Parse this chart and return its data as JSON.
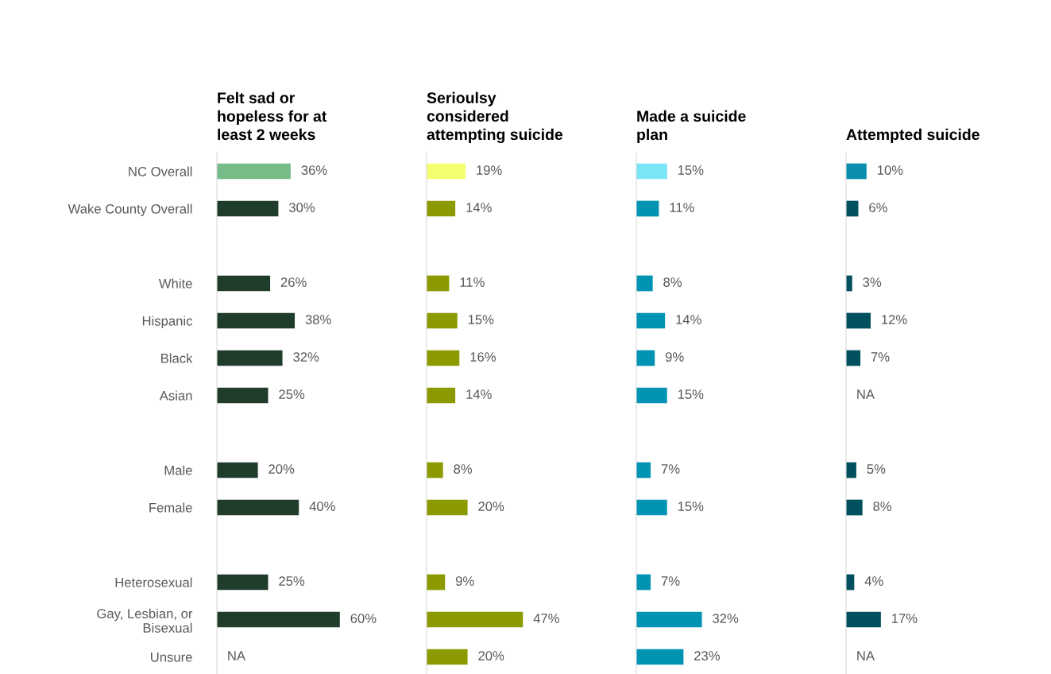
{
  "chart_data": [
    {
      "type": "bar",
      "orientation": "horizontal",
      "title": "Felt sad or\nhopeless for at\nleast 2 weeks",
      "tick_labels": "y",
      "categories": [
        "NC Overall",
        "Wake County Overall",
        null,
        "White",
        "Hispanic",
        "Black",
        "Asian",
        null,
        "Male",
        "Female",
        null,
        "Heterosexual",
        "Gay, Lesbian, or\nBisexual",
        "Unsure"
      ],
      "values": [
        36,
        30,
        null,
        26,
        38,
        32,
        25,
        null,
        20,
        40,
        null,
        25,
        60,
        null
      ],
      "value_labels": [
        "36%",
        "30%",
        null,
        "26%",
        "38%",
        "32%",
        "25%",
        null,
        "20%",
        "40%",
        null,
        "25%",
        "60%",
        "NA"
      ],
      "colors": [
        "#77bb88",
        "#1f3d2a",
        null,
        "#1f3d2a",
        "#1f3d2a",
        "#1f3d2a",
        "#1f3d2a",
        null,
        "#1f3d2a",
        "#1f3d2a",
        null,
        "#1f3d2a",
        "#1f3d2a",
        null
      ]
    },
    {
      "type": "bar",
      "orientation": "horizontal",
      "title": "Serioulsy\nconsidered\nattempting suicide",
      "tick_labels": false,
      "values": [
        19,
        14,
        null,
        11,
        15,
        16,
        14,
        null,
        8,
        20,
        null,
        9,
        47,
        20
      ],
      "value_labels": [
        "19%",
        "14%",
        null,
        "11%",
        "15%",
        "16%",
        "14%",
        null,
        "8%",
        "20%",
        null,
        "9%",
        "47%",
        "20%"
      ],
      "colors": [
        "#f3ff6e",
        "#8c9a00",
        null,
        "#8c9a00",
        "#8c9a00",
        "#8c9a00",
        "#8c9a00",
        null,
        "#8c9a00",
        "#8c9a00",
        null,
        "#8c9a00",
        "#8c9a00",
        "#8c9a00"
      ]
    },
    {
      "type": "bar",
      "orientation": "horizontal",
      "title": "Made a suicide\nplan",
      "tick_labels": false,
      "values": [
        15,
        11,
        null,
        8,
        14,
        9,
        15,
        null,
        7,
        15,
        null,
        7,
        32,
        23
      ],
      "value_labels": [
        "15%",
        "11%",
        null,
        "8%",
        "14%",
        "9%",
        "15%",
        null,
        "7%",
        "15%",
        null,
        "7%",
        "32%",
        "23%"
      ],
      "colors": [
        "#7ae5f5",
        "#0093b2",
        null,
        "#0093b2",
        "#0093b2",
        "#0093b2",
        "#0093b2",
        null,
        "#0093b2",
        "#0093b2",
        null,
        "#0093b2",
        "#0093b2",
        "#0093b2"
      ]
    },
    {
      "type": "bar",
      "orientation": "horizontal",
      "title": "Attempted suicide",
      "tick_labels": false,
      "values": [
        10,
        6,
        null,
        3,
        12,
        7,
        null,
        null,
        5,
        8,
        null,
        4,
        17,
        null
      ],
      "value_labels": [
        "10%",
        "6%",
        null,
        "3%",
        "12%",
        "7%",
        "NA",
        null,
        "5%",
        "8%",
        null,
        "4%",
        "17%",
        "NA"
      ],
      "colors": [
        "#0a8fb0",
        "#00505f",
        null,
        "#00505f",
        "#00505f",
        "#00505f",
        null,
        null,
        "#00505f",
        "#00505f",
        null,
        "#00505f",
        "#00505f",
        null
      ]
    }
  ]
}
